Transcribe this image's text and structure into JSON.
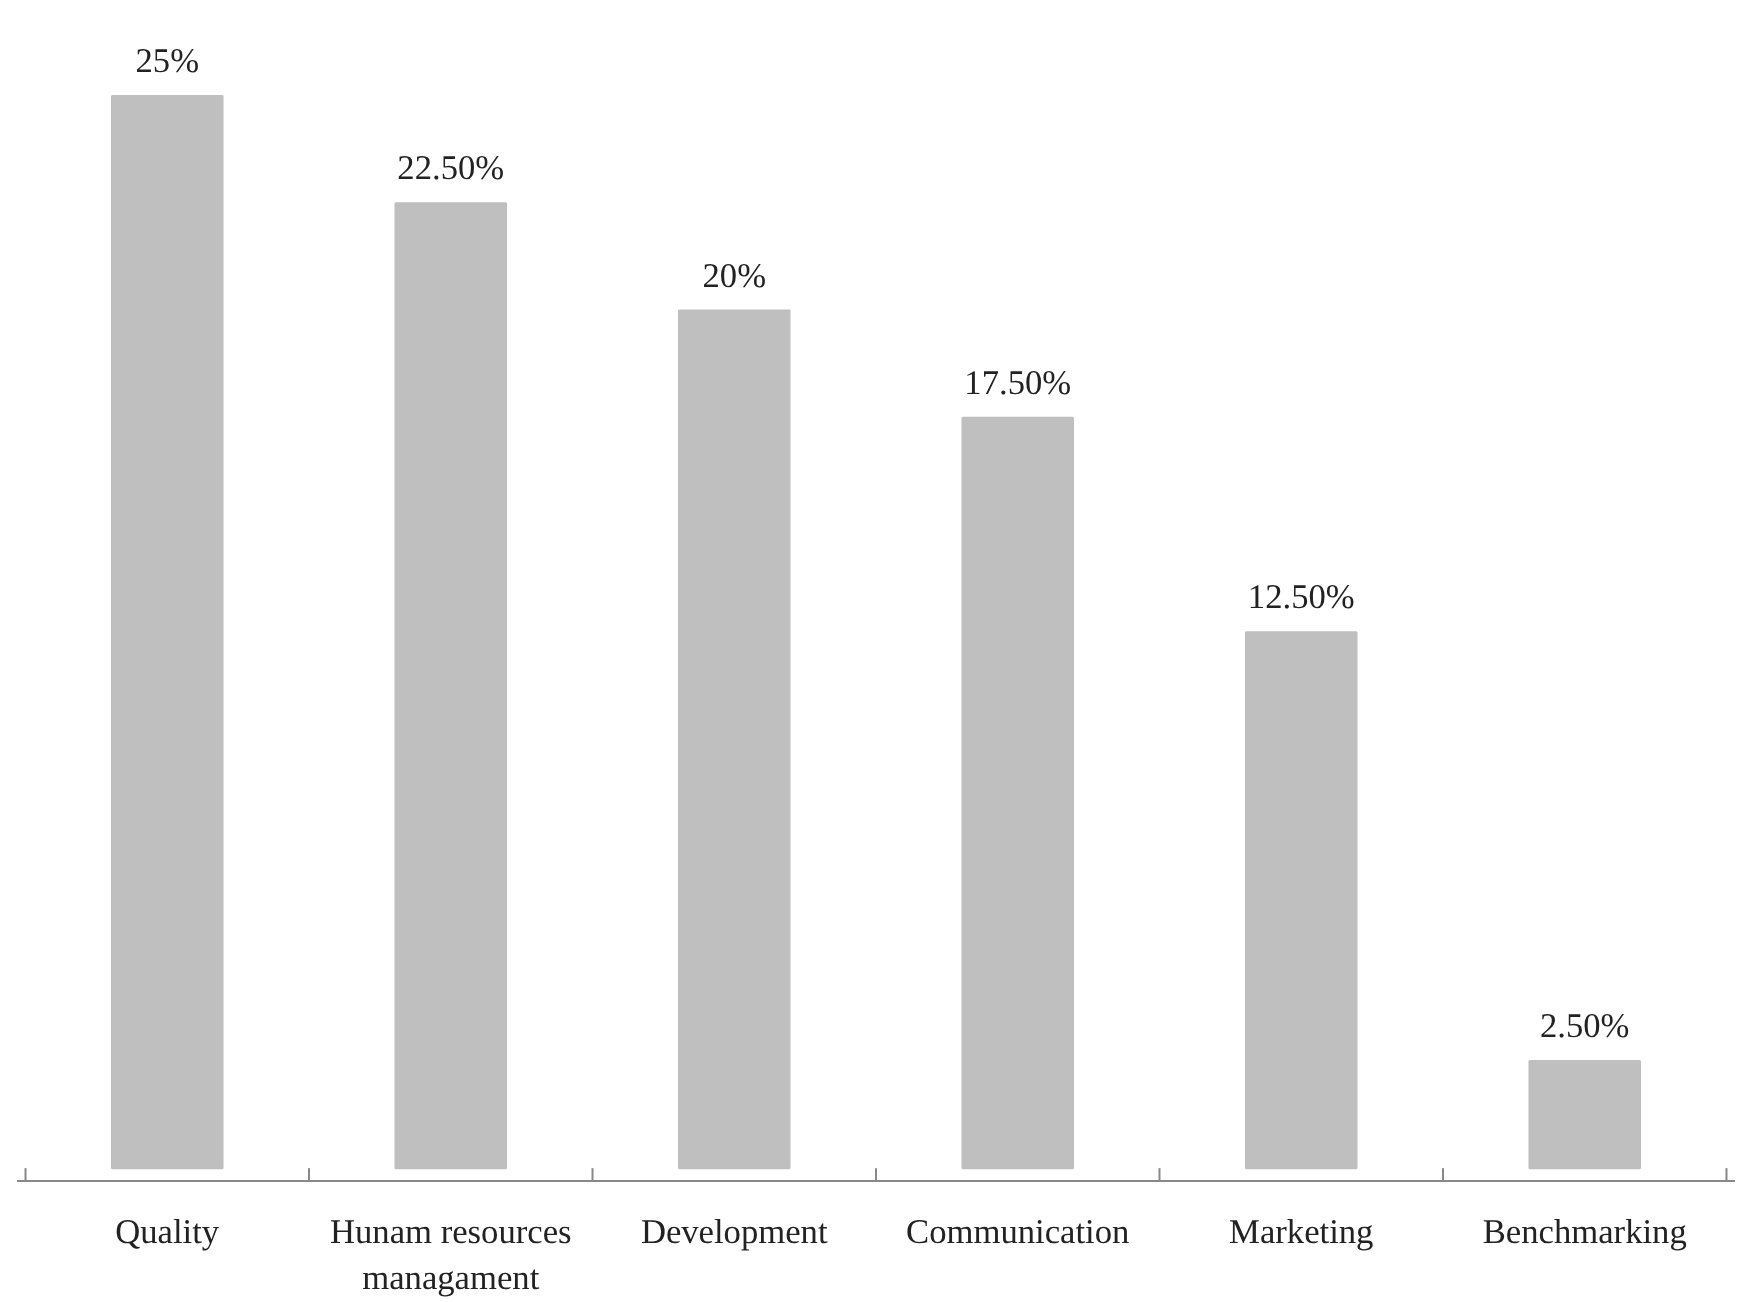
{
  "chart_data": {
    "type": "bar",
    "categories": [
      "Quality",
      "Hunam resources managament",
      "Development",
      "Communication",
      "Marketing",
      "Benchmarking"
    ],
    "values": [
      25,
      22.5,
      20,
      17.5,
      12.5,
      2.5
    ],
    "value_labels": [
      "25%",
      "22.50%",
      "20%",
      "17.50%",
      "12.50%",
      "2.50%"
    ],
    "color": "#bfbfbf"
  }
}
